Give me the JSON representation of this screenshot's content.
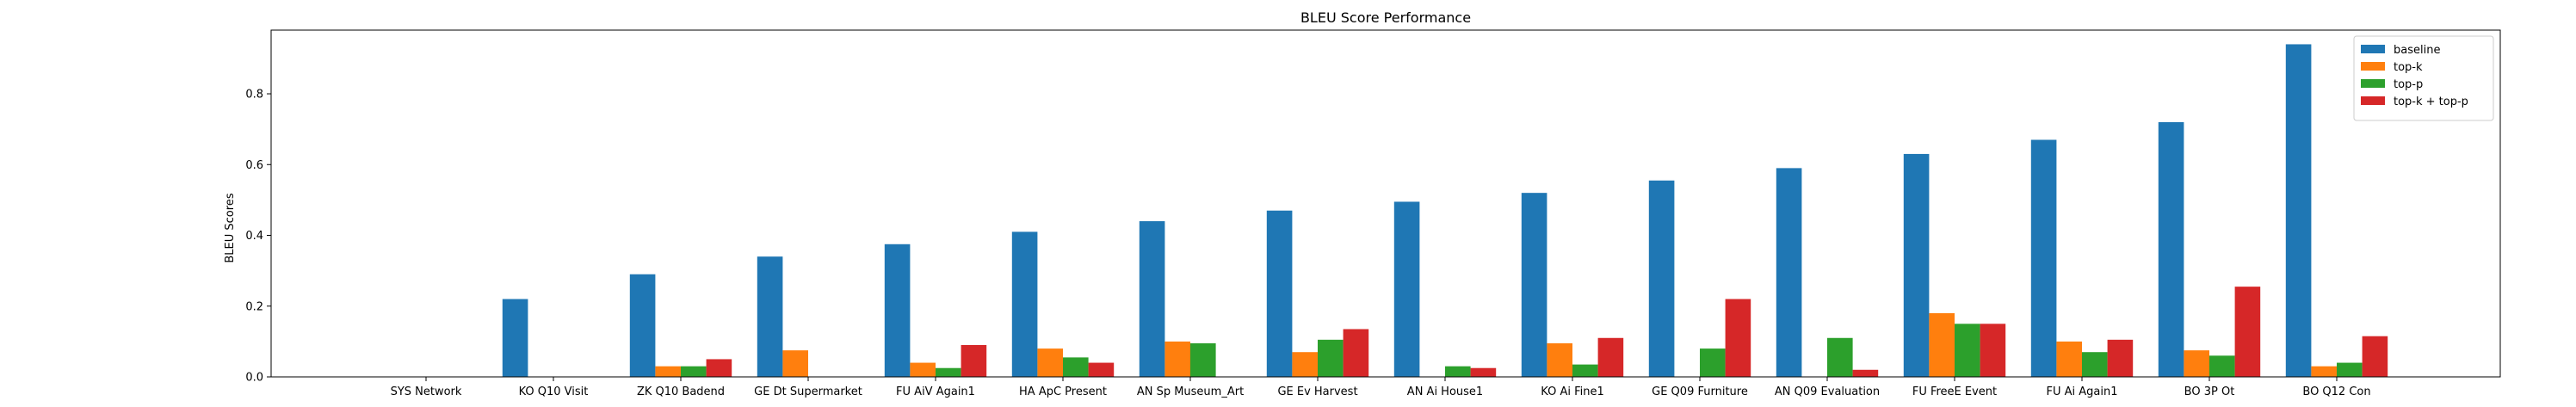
{
  "chart_data": {
    "type": "bar",
    "title": "BLEU Score Performance",
    "xlabel": "",
    "ylabel": "BLEU Scores",
    "ylim": [
      0,
      0.98
    ],
    "yticks": [
      "0.0",
      "0.2",
      "0.4",
      "0.6",
      "0.8"
    ],
    "grid": false,
    "legend_position": "top-right",
    "categories": [
      "SYS Network",
      "KO Q10 Visit",
      "ZK Q10 Badend",
      "GE Dt Supermarket",
      "FU AiV Again1",
      "HA ApC Present",
      "AN Sp Museum_Art",
      "GE Ev Harvest",
      "AN Ai House1",
      "KO Ai Fine1",
      "GE Q09 Furniture",
      "AN Q09 Evaluation",
      "FU FreeE Event",
      "FU Ai Again1",
      "BO 3P Ot",
      "BO Q12 Con"
    ],
    "series": [
      {
        "name": "baseline",
        "color": "#1f77b4",
        "values": [
          0.0,
          0.22,
          0.29,
          0.34,
          0.375,
          0.41,
          0.44,
          0.47,
          0.495,
          0.52,
          0.555,
          0.59,
          0.63,
          0.67,
          0.72,
          0.94
        ]
      },
      {
        "name": "top-k",
        "color": "#ff7f0e",
        "values": [
          0.0,
          0.0,
          0.03,
          0.075,
          0.04,
          0.08,
          0.1,
          0.07,
          0.0,
          0.095,
          0.0,
          0.0,
          0.18,
          0.1,
          0.075,
          0.03
        ]
      },
      {
        "name": "top-p",
        "color": "#2ca02c",
        "values": [
          0.0,
          0.0,
          0.03,
          0.0,
          0.025,
          0.055,
          0.095,
          0.105,
          0.03,
          0.035,
          0.08,
          0.11,
          0.15,
          0.07,
          0.06,
          0.04
        ]
      },
      {
        "name": "top-k + top-p",
        "color": "#d62728",
        "values": [
          0.0,
          0.0,
          0.05,
          0.0,
          0.09,
          0.04,
          0.0,
          0.135,
          0.025,
          0.11,
          0.22,
          0.02,
          0.15,
          0.105,
          0.255,
          0.115
        ]
      }
    ]
  }
}
